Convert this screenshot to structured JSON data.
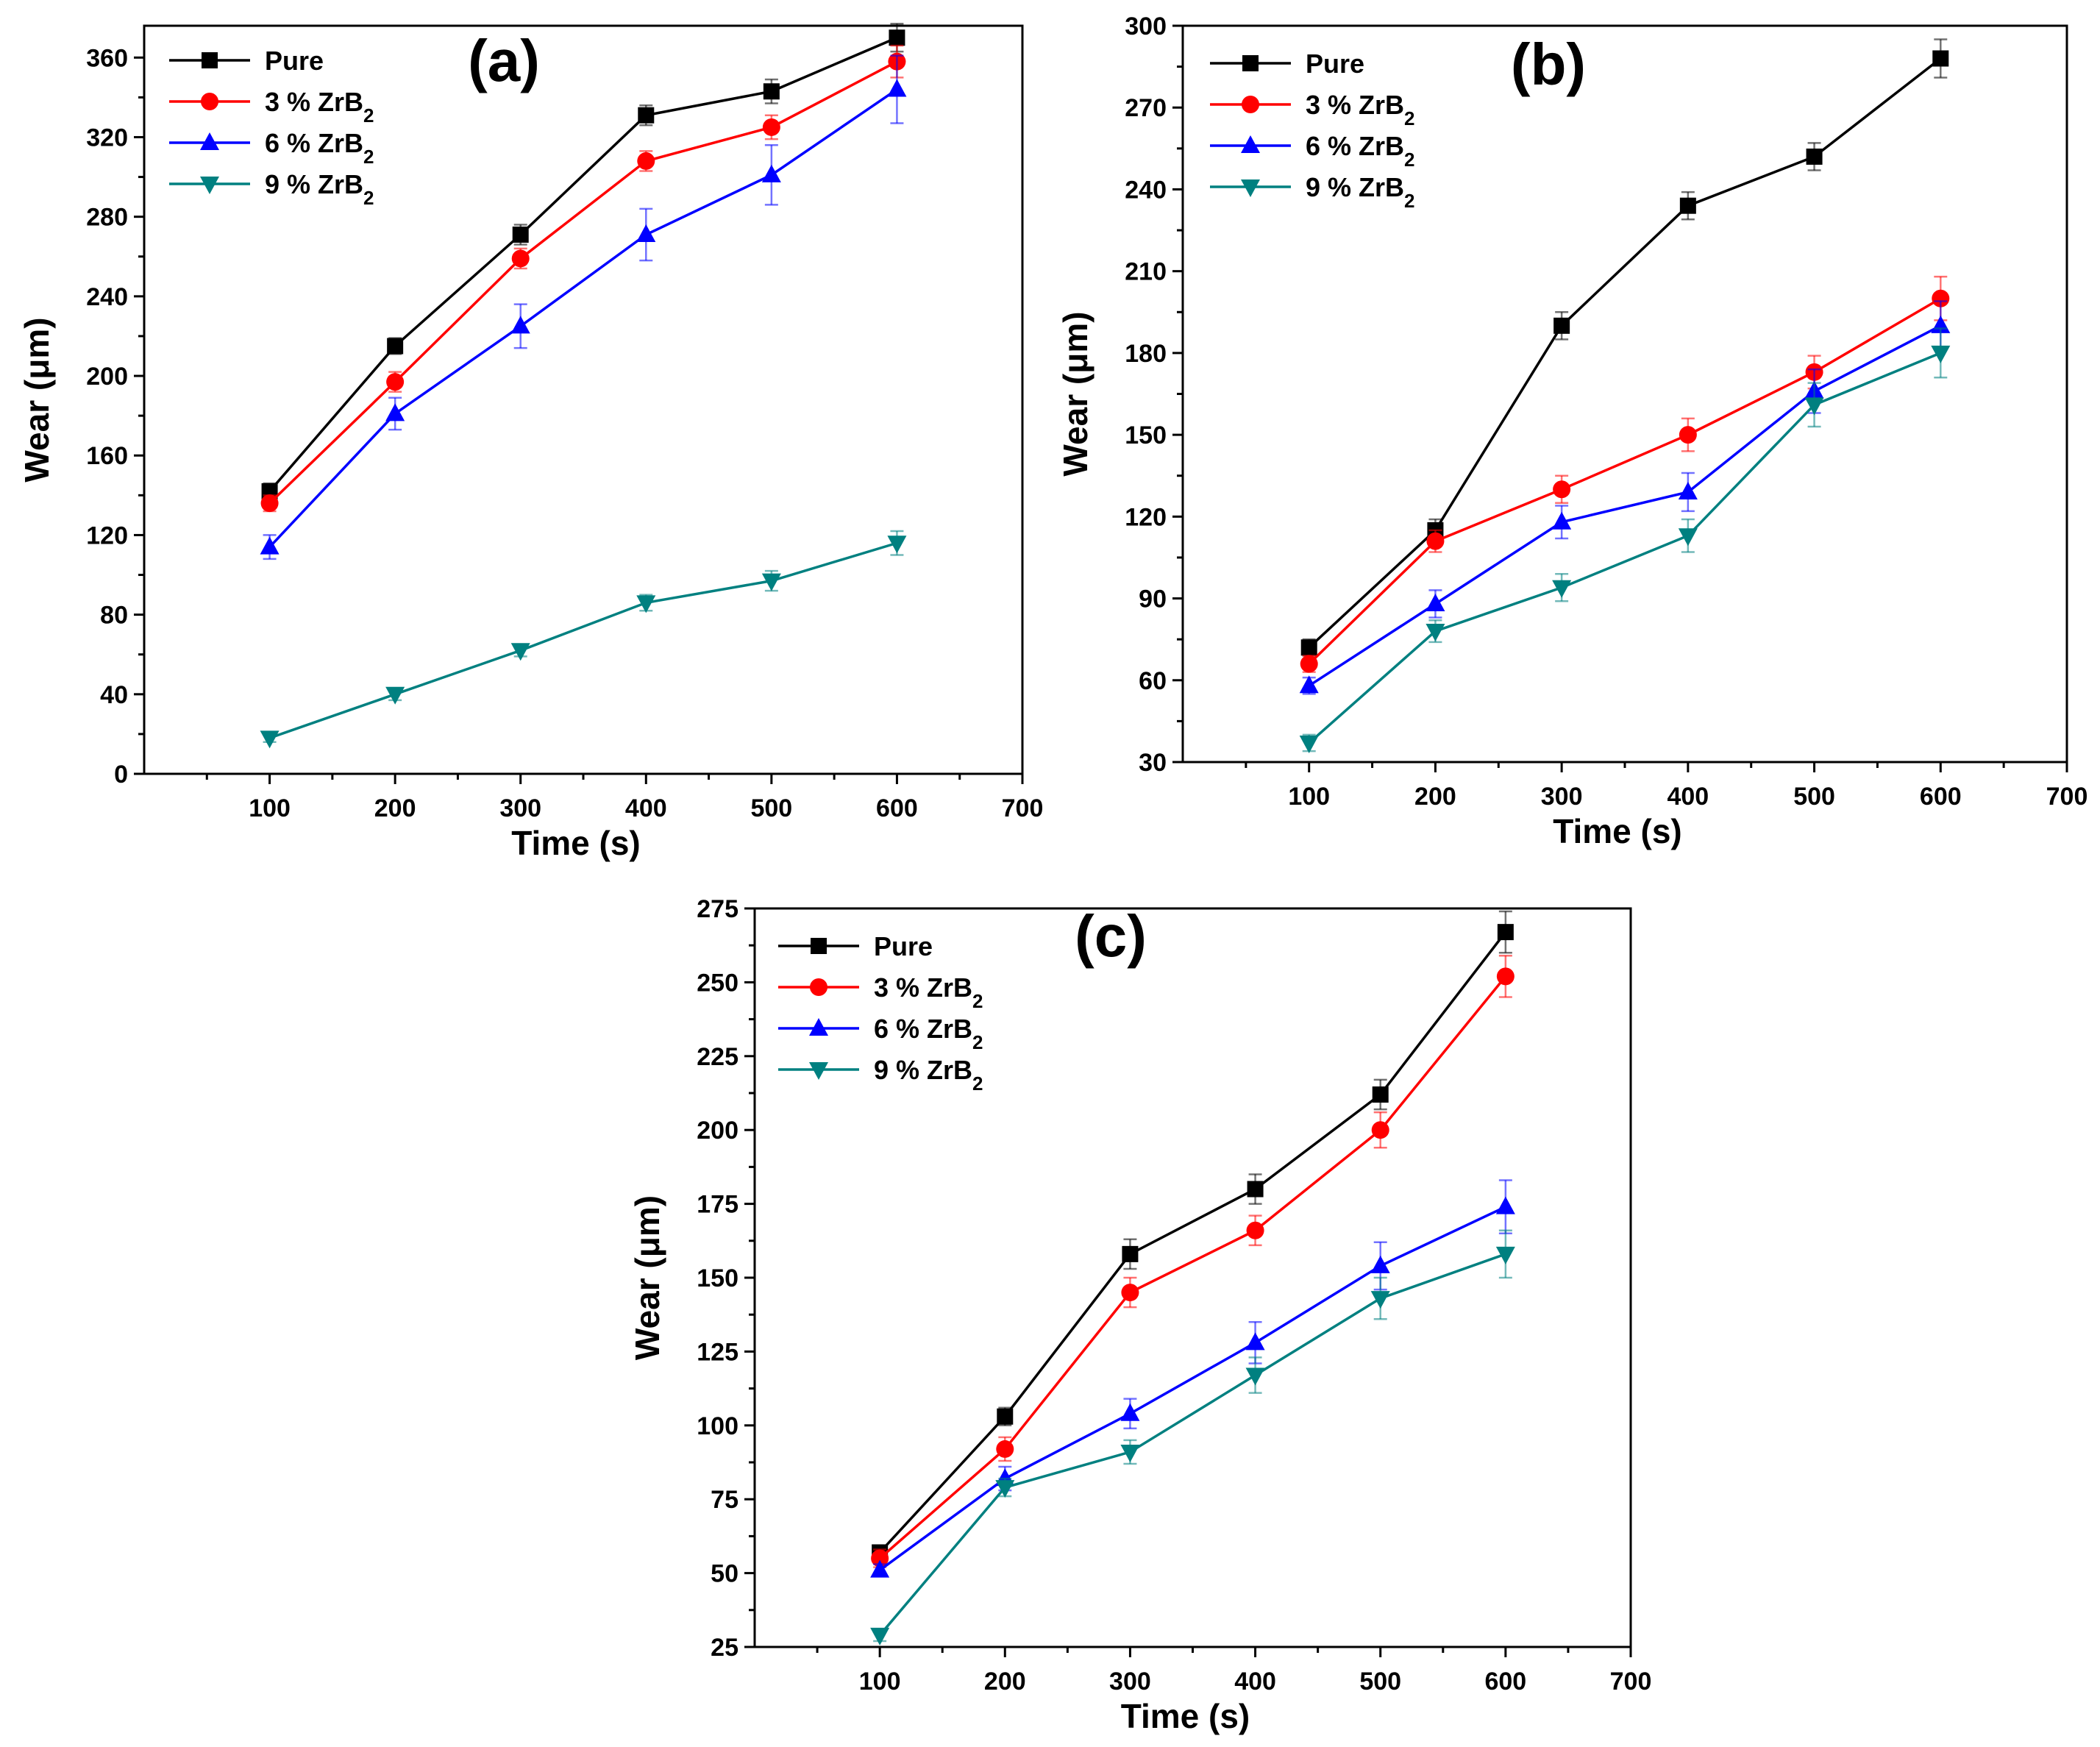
{
  "chart_data": [
    {
      "type": "line",
      "panel_label": "(a)",
      "xlabel": "Time (s)",
      "ylabel": "Wear (μm)",
      "xlim": [
        0,
        700
      ],
      "ylim": [
        0,
        376
      ],
      "xticks": [
        100,
        200,
        300,
        400,
        500,
        600,
        700
      ],
      "yticks": [
        0,
        40,
        80,
        120,
        160,
        200,
        240,
        280,
        320,
        360
      ],
      "x": [
        100,
        200,
        300,
        400,
        500,
        600
      ],
      "legend_position": "top-left",
      "series": [
        {
          "name": "Pure",
          "values": [
            142,
            215,
            271,
            331,
            343,
            370
          ],
          "errors": [
            4,
            4,
            5,
            5,
            6,
            7
          ]
        },
        {
          "name": "3 % ZrB2",
          "values": [
            136,
            197,
            259,
            308,
            325,
            358
          ],
          "errors": [
            4,
            5,
            5,
            5,
            6,
            8
          ]
        },
        {
          "name": "6 % ZrB2",
          "values": [
            114,
            181,
            225,
            271,
            301,
            344
          ],
          "errors": [
            6,
            8,
            11,
            13,
            15,
            17
          ]
        },
        {
          "name": "9 % ZrB2",
          "values": [
            18,
            40,
            62,
            86,
            97,
            116
          ],
          "errors": [
            2,
            3,
            3,
            4,
            5,
            6
          ]
        }
      ]
    },
    {
      "type": "line",
      "panel_label": "(b)",
      "xlabel": "Time (s)",
      "ylabel": "Wear (μm)",
      "xlim": [
        0,
        700
      ],
      "ylim": [
        30,
        300
      ],
      "xticks": [
        100,
        200,
        300,
        400,
        500,
        600,
        700
      ],
      "yticks": [
        30,
        60,
        90,
        120,
        150,
        180,
        210,
        240,
        270,
        300
      ],
      "x": [
        100,
        200,
        300,
        400,
        500,
        600
      ],
      "legend_position": "top-left",
      "series": [
        {
          "name": "Pure",
          "values": [
            72,
            115,
            190,
            234,
            252,
            288
          ],
          "errors": [
            3,
            4,
            5,
            5,
            5,
            7
          ]
        },
        {
          "name": "3 % ZrB2",
          "values": [
            66,
            111,
            130,
            150,
            173,
            200
          ],
          "errors": [
            3,
            4,
            5,
            6,
            6,
            8
          ]
        },
        {
          "name": "6 % ZrB2",
          "values": [
            58,
            88,
            118,
            129,
            166,
            190
          ],
          "errors": [
            3,
            5,
            6,
            7,
            8,
            9
          ]
        },
        {
          "name": "9 % ZrB2",
          "values": [
            37,
            78,
            94,
            113,
            161,
            180
          ],
          "errors": [
            3,
            4,
            5,
            6,
            8,
            9
          ]
        }
      ]
    },
    {
      "type": "line",
      "panel_label": "(c)",
      "xlabel": "Time (s)",
      "ylabel": "Wear (μm)",
      "xlim": [
        0,
        700
      ],
      "ylim": [
        25,
        275
      ],
      "xticks": [
        100,
        200,
        300,
        400,
        500,
        600,
        700
      ],
      "yticks": [
        25,
        50,
        75,
        100,
        125,
        150,
        175,
        200,
        225,
        250,
        275
      ],
      "x": [
        100,
        200,
        300,
        400,
        500,
        600
      ],
      "legend_position": "top-left",
      "series": [
        {
          "name": "Pure",
          "values": [
            57,
            103,
            158,
            180,
            212,
            267
          ],
          "errors": [
            2,
            3,
            5,
            5,
            5,
            7
          ]
        },
        {
          "name": "3 % ZrB2",
          "values": [
            55,
            92,
            145,
            166,
            200,
            252
          ],
          "errors": [
            3,
            4,
            5,
            5,
            6,
            7
          ]
        },
        {
          "name": "6 % ZrB2",
          "values": [
            51,
            82,
            104,
            128,
            154,
            174
          ],
          "errors": [
            2,
            4,
            5,
            7,
            8,
            9
          ]
        },
        {
          "name": "9 % ZrB2",
          "values": [
            29,
            79,
            91,
            117,
            143,
            158
          ],
          "errors": [
            2,
            3,
            4,
            6,
            7,
            8
          ]
        }
      ]
    }
  ],
  "series_styles": [
    {
      "color": "#000000",
      "marker": "square"
    },
    {
      "color": "#ff0000",
      "marker": "circle"
    },
    {
      "color": "#0000ff",
      "marker": "triangle-up"
    },
    {
      "color": "#008080",
      "marker": "triangle-down"
    }
  ]
}
